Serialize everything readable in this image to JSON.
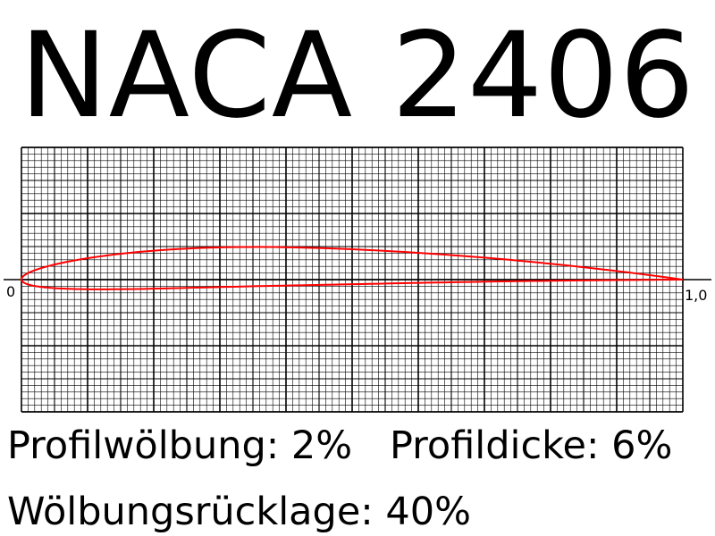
{
  "title": "NACA 2406",
  "profile": {
    "camber_percent": 2,
    "camber_position_percent": 40,
    "thickness_percent": 6,
    "colors": {
      "profile_line": "#ff0000",
      "grid": "#000000"
    }
  },
  "axis": {
    "start_label": "0",
    "end_label": "1,0",
    "x_range": [
      0,
      1
    ],
    "y_range": [
      -0.2,
      0.2
    ]
  },
  "params": {
    "camber_text": "Profilwölbung: 2%",
    "thickness_text": "Profildicke: 6%",
    "camber_position_text": "Wölbungsrücklage: 40%"
  }
}
